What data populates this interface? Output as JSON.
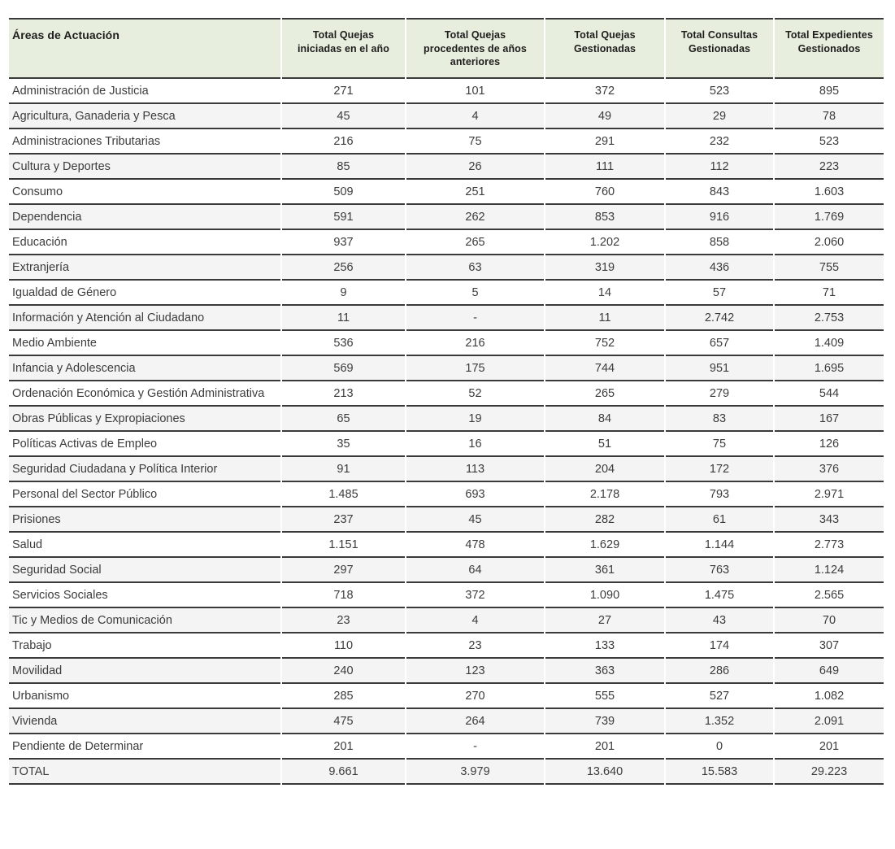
{
  "colors": {
    "header_bg": "#e8eedd",
    "stripe_bg": "#f4f4f4",
    "border": "#3a3a3a",
    "text": "#3c3c3c",
    "header_text": "#1d1d1d"
  },
  "chart_data": {
    "type": "table",
    "layout": {
      "striped_rows": true,
      "first_column_align": "left",
      "value_columns_align": "center",
      "thousands_separator": "."
    },
    "columns": [
      "Áreas de Actuación",
      "Total Quejas\niniciadas en el año",
      "Total Quejas\nprocedentes de años\nanteriores",
      "Total Quejas\nGestionadas",
      "Total Consultas\nGestionadas",
      "Total Expedientes\nGestionados"
    ],
    "rows": [
      [
        "Administración de Justicia",
        "271",
        "101",
        "372",
        "523",
        "895"
      ],
      [
        "Agricultura, Ganaderia y Pesca",
        "45",
        "4",
        "49",
        "29",
        "78"
      ],
      [
        "Administraciones Tributarias",
        "216",
        "75",
        "291",
        "232",
        "523"
      ],
      [
        "Cultura y Deportes",
        "85",
        "26",
        "111",
        "112",
        "223"
      ],
      [
        "Consumo",
        "509",
        "251",
        "760",
        "843",
        "1.603"
      ],
      [
        "Dependencia",
        "591",
        "262",
        "853",
        "916",
        "1.769"
      ],
      [
        "Educación",
        "937",
        "265",
        "1.202",
        "858",
        "2.060"
      ],
      [
        "Extranjería",
        "256",
        "63",
        "319",
        "436",
        "755"
      ],
      [
        "Igualdad de Género",
        "9",
        "5",
        "14",
        "57",
        "71"
      ],
      [
        "Información y Atención al Ciudadano",
        "11",
        "-",
        "11",
        "2.742",
        "2.753"
      ],
      [
        "Medio Ambiente",
        "536",
        "216",
        "752",
        "657",
        "1.409"
      ],
      [
        "Infancia y Adolescencia",
        "569",
        "175",
        "744",
        "951",
        "1.695"
      ],
      [
        "Ordenación Económica y Gestión Administrativa",
        "213",
        "52",
        "265",
        "279",
        "544"
      ],
      [
        "Obras Públicas y Expropiaciones",
        "65",
        "19",
        "84",
        "83",
        "167"
      ],
      [
        "Políticas Activas de Empleo",
        "35",
        "16",
        "51",
        "75",
        "126"
      ],
      [
        "Seguridad Ciudadana y Política Interior",
        "91",
        "113",
        "204",
        "172",
        "376"
      ],
      [
        "Personal del Sector Público",
        "1.485",
        "693",
        "2.178",
        "793",
        "2.971"
      ],
      [
        "Prisiones",
        "237",
        "45",
        "282",
        "61",
        "343"
      ],
      [
        "Salud",
        "1.151",
        "478",
        "1.629",
        "1.144",
        "2.773"
      ],
      [
        "Seguridad Social",
        "297",
        "64",
        "361",
        "763",
        "1.124"
      ],
      [
        "Servicios Sociales",
        "718",
        "372",
        "1.090",
        "1.475",
        "2.565"
      ],
      [
        "Tic y Medios de Comunicación",
        "23",
        "4",
        "27",
        "43",
        "70"
      ],
      [
        "Trabajo",
        "110",
        "23",
        "133",
        "174",
        "307"
      ],
      [
        "Movilidad",
        "240",
        "123",
        "363",
        "286",
        "649"
      ],
      [
        "Urbanismo",
        "285",
        "270",
        "555",
        "527",
        "1.082"
      ],
      [
        "Vivienda",
        "475",
        "264",
        "739",
        "1.352",
        "2.091"
      ],
      [
        "Pendiente de Determinar",
        "201",
        "-",
        "201",
        "0",
        "201"
      ]
    ],
    "total_row": [
      "TOTAL",
      "9.661",
      "3.979",
      "13.640",
      "15.583",
      "29.223"
    ]
  }
}
